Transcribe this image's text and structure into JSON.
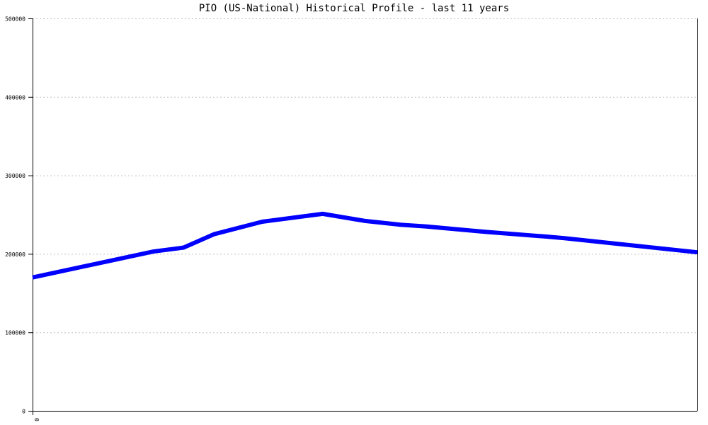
{
  "chart_data": {
    "type": "line",
    "title": "PIO (US-National) Historical Profile - last 11 years",
    "xlabel": "",
    "ylabel": "",
    "ylim": [
      0,
      500000
    ],
    "yticks": [
      "0",
      "100000",
      "200000",
      "300000",
      "400000",
      "500000"
    ],
    "xticks": [
      "0"
    ],
    "xlim": [
      0,
      11
    ],
    "grid": "horizontal dotted",
    "line_color": "#0000ff",
    "series": [
      {
        "x": [
          0,
          2.0,
          2.5,
          3.0,
          3.8,
          4.8,
          5.5,
          6.1,
          6.5,
          7.5,
          8.5,
          8.8,
          11
        ],
        "values": [
          170000,
          203000,
          208000,
          225000,
          241000,
          251000,
          242000,
          237000,
          235000,
          228000,
          222000,
          220000,
          202000
        ]
      }
    ]
  }
}
